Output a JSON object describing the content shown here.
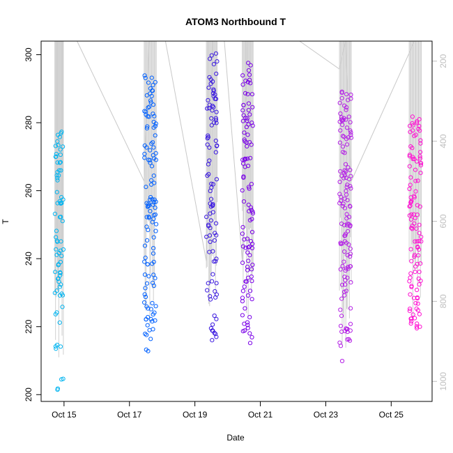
{
  "chart_data": {
    "type": "scatter",
    "title": "ATOM3 Northbound T",
    "xlabel": "Date",
    "ylabel": "T",
    "secondary_axis": {
      "position": "right",
      "ticks": [
        200,
        400,
        600,
        800,
        1000
      ],
      "range": [
        1050,
        150
      ],
      "direction": "inverted",
      "color": "#bebebe"
    },
    "xlim_days": [
      14.3,
      26.25
    ],
    "ylim": [
      198,
      304
    ],
    "x_ticks": [
      {
        "label": "Oct 15",
        "day": 15
      },
      {
        "label": "Oct 17",
        "day": 17
      },
      {
        "label": "Oct 19",
        "day": 19
      },
      {
        "label": "Oct 21",
        "day": 21
      },
      {
        "label": "Oct 23",
        "day": 23
      },
      {
        "label": "Oct 25",
        "day": 25
      }
    ],
    "y_ticks": [
      200,
      220,
      240,
      260,
      280,
      300
    ],
    "grid": false,
    "legend": "none",
    "marker": "open-circle",
    "color_scale": [
      "#00bfff",
      "#0050ff",
      "#3020e0",
      "#8000e0",
      "#b020e0",
      "#ff00cc"
    ],
    "clusters": [
      {
        "day_start": 14.72,
        "day_end": 14.98,
        "t_min": 200.5,
        "t_max": 277.5,
        "color": "#00b4f0",
        "n": 75
      },
      {
        "day_start": 17.45,
        "day_end": 17.82,
        "t_min": 212,
        "t_max": 294.5,
        "color": "#0060ff",
        "n": 120
      },
      {
        "day_start": 19.35,
        "day_end": 19.68,
        "t_min": 215,
        "t_max": 300.5,
        "color": "#3a18e0",
        "n": 95
      },
      {
        "day_start": 20.45,
        "day_end": 20.78,
        "t_min": 215,
        "t_max": 300,
        "color": "#7a00e8",
        "n": 105
      },
      {
        "day_start": 23.42,
        "day_end": 23.78,
        "t_min": 209.5,
        "t_max": 291,
        "color": "#b41fe6",
        "n": 130
      },
      {
        "day_start": 25.55,
        "day_end": 25.92,
        "t_min": 219,
        "t_max": 282,
        "color": "#ff10d2",
        "n": 110
      }
    ],
    "pressure_path": [
      {
        "day": 14.72,
        "p": 150
      },
      {
        "day": 14.98,
        "p": 150
      },
      {
        "day": 15.4,
        "p": 150
      },
      {
        "day": 17.45,
        "p": 500
      },
      {
        "day": 17.6,
        "p": 150
      },
      {
        "day": 18.1,
        "p": 150
      },
      {
        "day": 19.35,
        "p": 700
      },
      {
        "day": 19.55,
        "p": 150
      },
      {
        "day": 19.9,
        "p": 150
      },
      {
        "day": 20.45,
        "p": 700
      },
      {
        "day": 20.6,
        "p": 150
      },
      {
        "day": 22.2,
        "p": 150
      },
      {
        "day": 23.42,
        "p": 220
      },
      {
        "day": 23.6,
        "p": 150
      },
      {
        "day": 23.78,
        "p": 500
      },
      {
        "day": 25.55,
        "p": 180
      },
      {
        "day": 25.7,
        "p": 150
      }
    ]
  }
}
